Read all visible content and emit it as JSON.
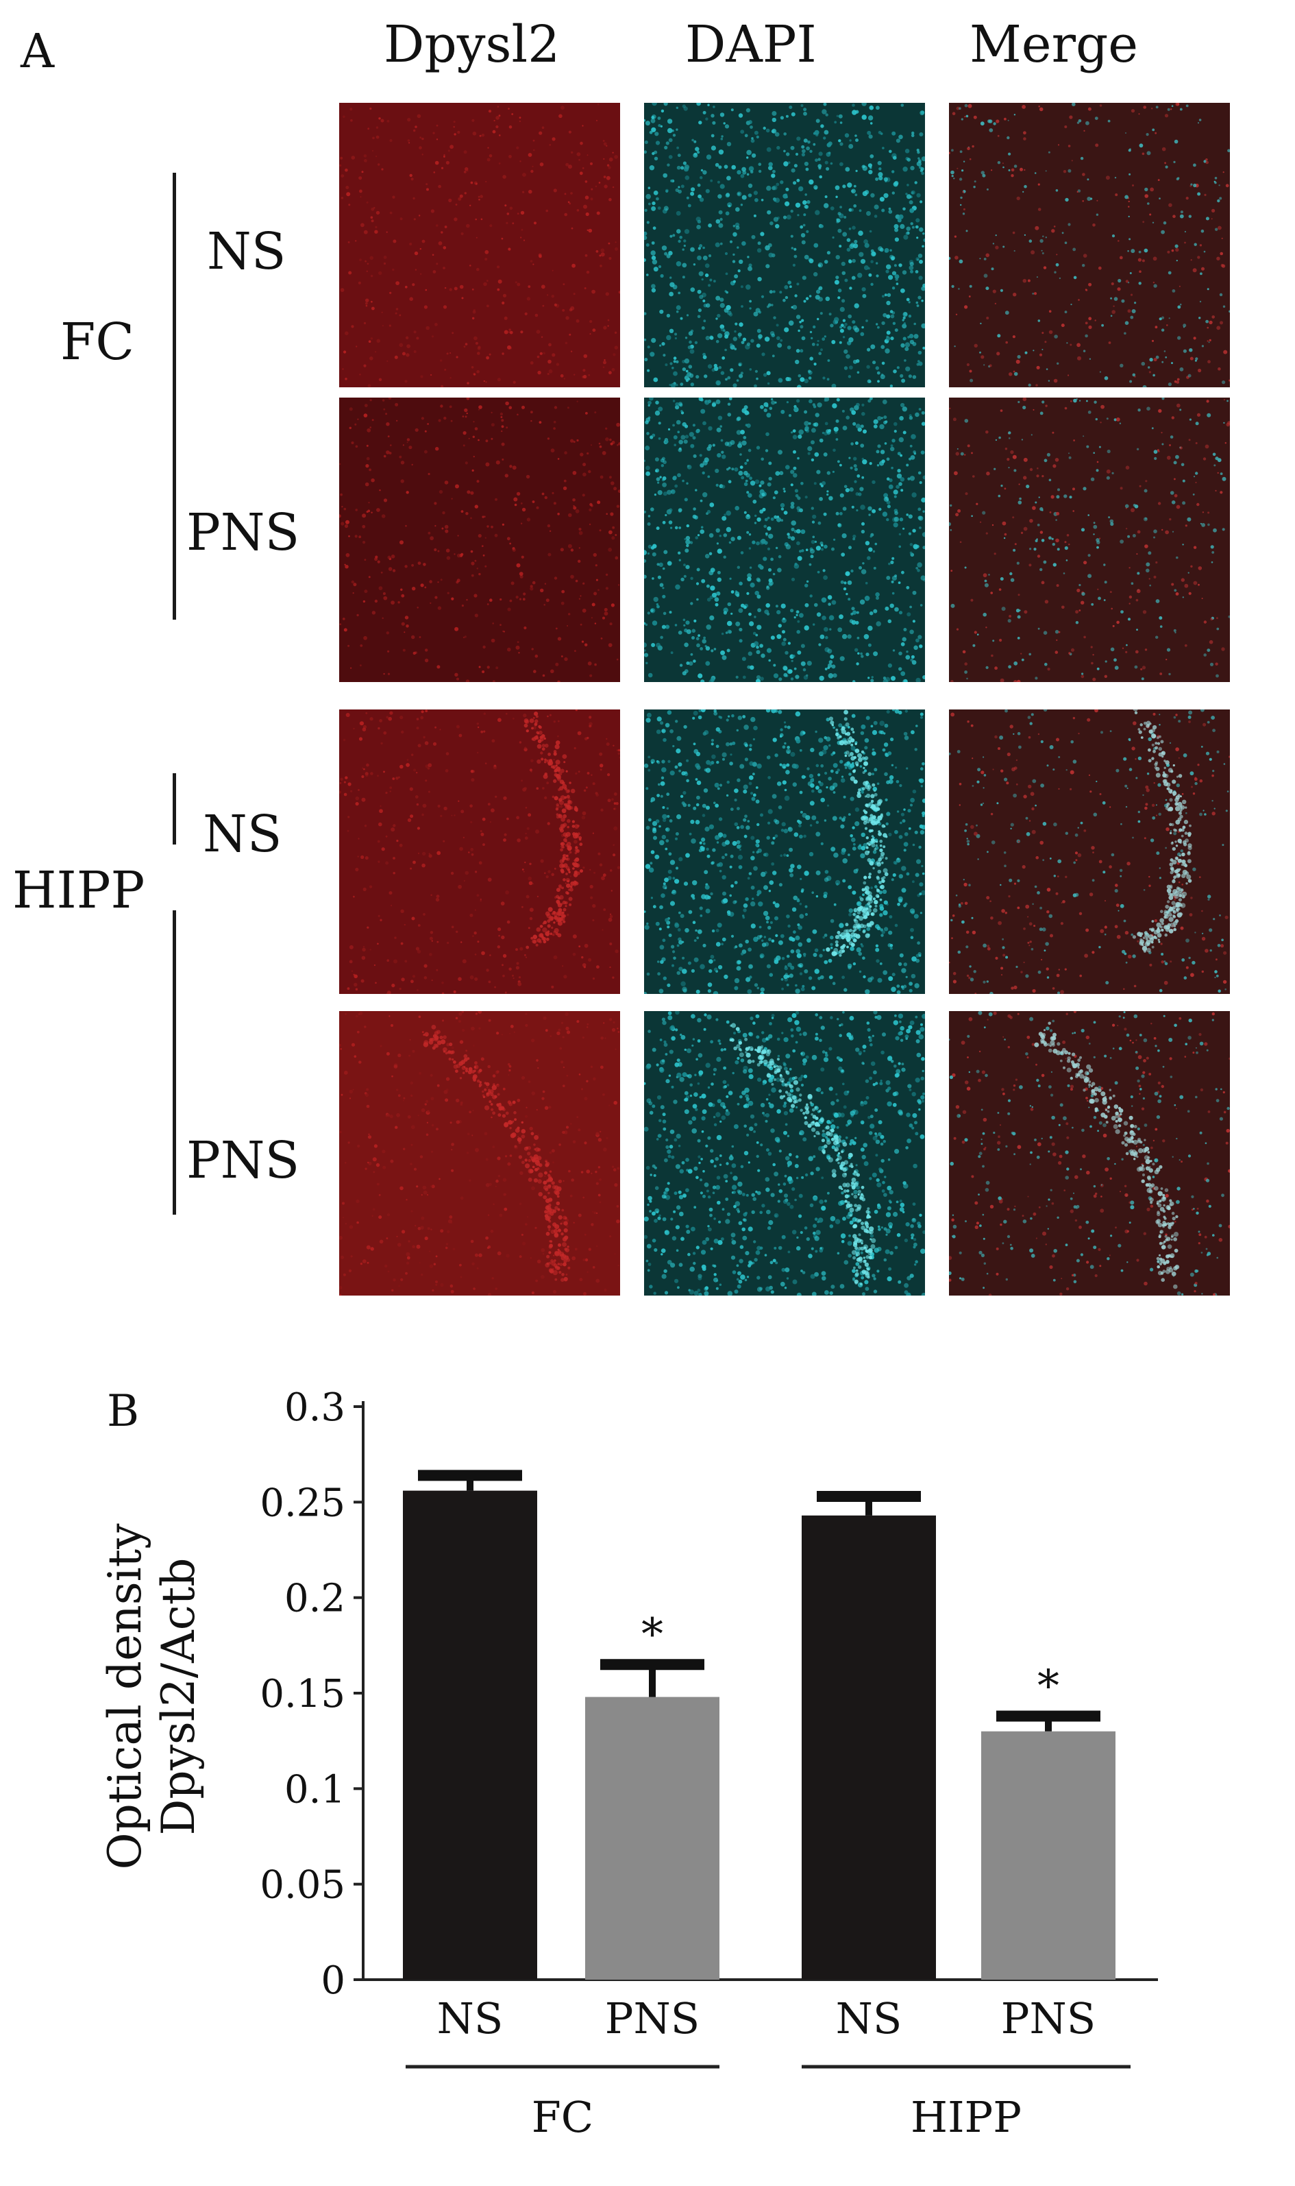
{
  "panel_a": {
    "letter": "A",
    "columns": [
      "Dpysl2",
      "DAPI",
      "Merge"
    ],
    "regions": [
      {
        "name": "FC",
        "rows": [
          "NS",
          "PNS"
        ]
      },
      {
        "name": "HIPP",
        "rows": [
          "NS",
          "PNS"
        ]
      }
    ],
    "colors": {
      "dpysl2": "#8a1616",
      "dapi": "#1fb8c0",
      "merge": "#5a2a28"
    }
  },
  "chart_data": {
    "type": "bar",
    "panel_letter": "B",
    "ylabel": [
      "Optical density",
      "Dpysl2/Actb"
    ],
    "ylim": [
      0,
      0.3
    ],
    "yticks": [
      "0",
      "0.05",
      "0.1",
      "0.15",
      "0.2",
      "0.25",
      "0.3"
    ],
    "groups": [
      "FC",
      "HIPP"
    ],
    "categories": [
      "NS",
      "PNS",
      "NS",
      "PNS"
    ],
    "values": [
      0.256,
      0.148,
      0.243,
      0.13
    ],
    "errors": [
      0.008,
      0.017,
      0.01,
      0.008
    ],
    "significance": [
      "",
      "*",
      "",
      "*"
    ],
    "bar_colors": [
      "#1a1717",
      "#8a8a8a",
      "#1a1717",
      "#8a8a8a"
    ]
  }
}
